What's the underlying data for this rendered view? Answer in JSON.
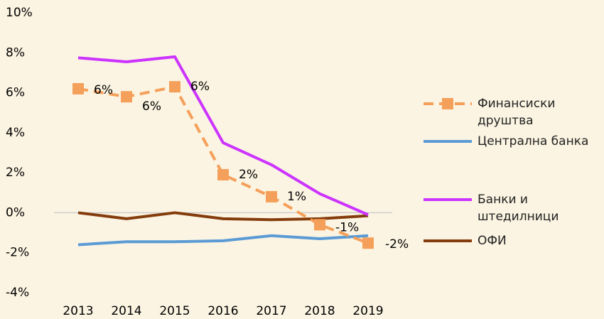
{
  "chart_data": {
    "type": "line",
    "categories": [
      "2013",
      "2014",
      "2015",
      "2016",
      "2017",
      "2018",
      "2019"
    ],
    "series": [
      {
        "name": "Финансиски друштва",
        "color": "#f5a05a",
        "dashed": true,
        "marker": "square",
        "values": [
          6.2,
          5.8,
          6.3,
          1.9,
          0.8,
          -0.6,
          -1.52
        ],
        "value_labels": [
          "6%",
          "6%",
          "6%",
          "2%",
          "1%",
          "-1%",
          "-2%"
        ]
      },
      {
        "name": "Централна банка",
        "color": "#5b9bd5",
        "values": [
          -1.6,
          -1.45,
          -1.45,
          -1.4,
          -1.15,
          -1.3,
          -1.15
        ]
      },
      {
        "name": "Банки и штедилници",
        "color": "#cc33ff",
        "values": [
          7.75,
          7.55,
          7.8,
          3.5,
          2.4,
          0.95,
          -0.1
        ]
      },
      {
        "name": "ОФИ",
        "color": "#843c0c",
        "values": [
          0,
          -0.3,
          0,
          -0.3,
          -0.35,
          -0.3,
          -0.15
        ]
      }
    ],
    "ylim": [
      -4,
      10
    ],
    "yticks": [
      {
        "value": -4,
        "label": "-4%"
      },
      {
        "value": -2,
        "label": "-2%"
      },
      {
        "value": 0,
        "label": "0%"
      },
      {
        "value": 2,
        "label": "2%"
      },
      {
        "value": 4,
        "label": "4%"
      },
      {
        "value": 6,
        "label": "6%"
      },
      {
        "value": 8,
        "label": "8%"
      },
      {
        "value": 10,
        "label": "10%"
      }
    ],
    "legend": "right"
  }
}
